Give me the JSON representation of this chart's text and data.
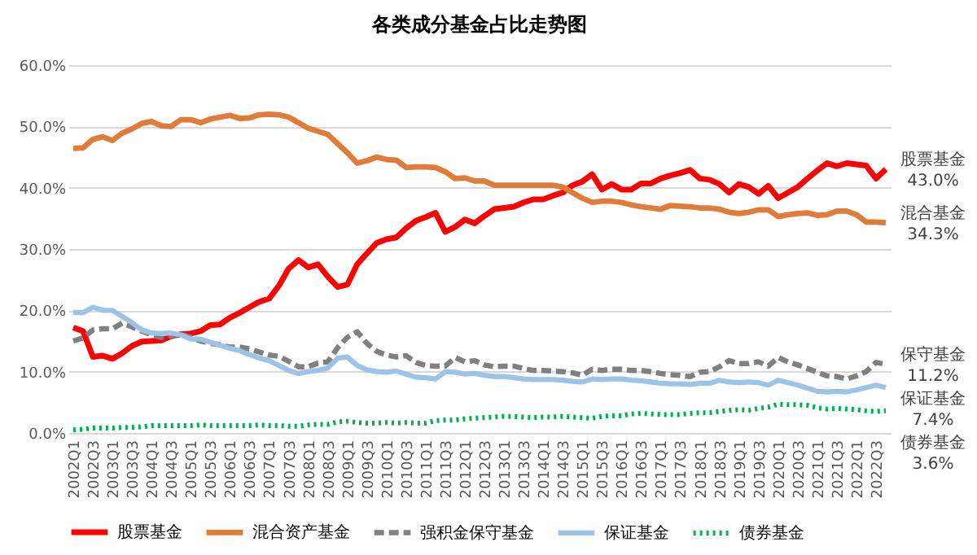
{
  "chart_data": {
    "type": "line",
    "title": "各类成分基金占比走势图",
    "categories": [
      "2002Q1",
      null,
      "2002Q3",
      null,
      "2003Q1",
      null,
      "2003Q3",
      null,
      "2004Q1",
      null,
      "2004Q3",
      null,
      "2005Q1",
      null,
      "2005Q3",
      null,
      "2006Q1",
      null,
      "2006Q3",
      null,
      "2007Q1",
      null,
      "2007Q3",
      null,
      "2008Q1",
      null,
      "2008Q3",
      null,
      "2009Q1",
      null,
      "2009Q3",
      null,
      "2010Q1",
      null,
      "2010Q3",
      null,
      "2011Q1",
      null,
      "2011Q3",
      null,
      "2012Q1",
      null,
      "2012Q3",
      null,
      "2013Q1",
      null,
      "2013Q3",
      null,
      "2014Q1",
      null,
      "2014Q3",
      null,
      "2015Q1",
      null,
      "2015Q3",
      null,
      "2016Q1",
      null,
      "2016Q3",
      null,
      "2017Q1",
      null,
      "2017Q3",
      null,
      "2018Q1",
      null,
      "2018Q3",
      null,
      "2019Q1",
      null,
      "2019Q3",
      null,
      "2020Q1",
      null,
      "2020Q3",
      null,
      "2021Q1",
      null,
      "2021Q3",
      null,
      "2022Q1",
      null,
      "2022Q3",
      null
    ],
    "series": [
      {
        "name": "股票基金",
        "color": "#ff0000",
        "line_style": "solid",
        "values": [
          17.2,
          16.6,
          12.4,
          12.6,
          12.1,
          13.0,
          14.2,
          14.9,
          15.0,
          15.1,
          15.8,
          16.1,
          16.2,
          16.6,
          17.6,
          17.7,
          18.8,
          19.6,
          20.5,
          21.4,
          21.9,
          24.0,
          26.8,
          28.2,
          27.0,
          27.5,
          25.5,
          23.8,
          24.2,
          27.5,
          29.3,
          31.0,
          31.6,
          31.9,
          33.4,
          34.6,
          35.2,
          35.9,
          32.8,
          33.6,
          34.8,
          34.2,
          35.4,
          36.5,
          36.7,
          36.9,
          37.6,
          38.1,
          38.1,
          38.7,
          39.2,
          40.4,
          41.0,
          42.2,
          39.7,
          40.6,
          39.7,
          39.7,
          40.7,
          40.7,
          41.5,
          42.0,
          42.4,
          42.9,
          41.5,
          41.3,
          40.6,
          39.2,
          40.6,
          40.1,
          39.0,
          40.3,
          38.3,
          39.2,
          40.1,
          41.5,
          42.8,
          44.0,
          43.5,
          44.0,
          43.8,
          43.6,
          41.5,
          43.0
        ]
      },
      {
        "name": "混合资产基金",
        "color": "#e07b39",
        "line_style": "solid",
        "values": [
          46.4,
          46.5,
          47.9,
          48.3,
          47.7,
          48.9,
          49.6,
          50.5,
          50.8,
          50.1,
          50.0,
          51.1,
          51.1,
          50.6,
          51.2,
          51.5,
          51.8,
          51.3,
          51.4,
          51.9,
          52.0,
          51.9,
          51.5,
          50.6,
          49.7,
          49.2,
          48.7,
          47.2,
          45.7,
          44.0,
          44.4,
          45.0,
          44.6,
          44.5,
          43.3,
          43.4,
          43.4,
          43.3,
          42.6,
          41.5,
          41.6,
          41.1,
          41.1,
          40.4,
          40.4,
          40.4,
          40.4,
          40.4,
          40.4,
          40.4,
          40.1,
          39.2,
          38.3,
          37.6,
          37.8,
          37.8,
          37.6,
          37.2,
          36.9,
          36.7,
          36.5,
          37.1,
          37.0,
          36.9,
          36.7,
          36.7,
          36.5,
          36.0,
          35.8,
          36.0,
          36.4,
          36.4,
          35.3,
          35.6,
          35.8,
          35.9,
          35.5,
          35.6,
          36.2,
          36.2,
          35.6,
          34.4,
          34.4,
          34.3
        ]
      },
      {
        "name": "强积金保守基金",
        "color": "#808080",
        "line_style": "dashed",
        "values": [
          15.0,
          15.5,
          16.8,
          17.0,
          17.0,
          17.9,
          17.3,
          16.6,
          16.0,
          15.6,
          15.9,
          16.1,
          15.6,
          15.0,
          14.6,
          14.4,
          14.0,
          14.0,
          13.7,
          13.2,
          12.7,
          12.5,
          11.7,
          10.8,
          10.8,
          11.4,
          11.6,
          13.9,
          15.6,
          16.5,
          14.6,
          13.3,
          12.7,
          12.4,
          12.6,
          11.5,
          11.0,
          10.9,
          10.9,
          12.3,
          11.6,
          11.8,
          11.1,
          10.8,
          10.9,
          10.9,
          10.5,
          10.2,
          10.2,
          10.1,
          10.0,
          9.8,
          9.4,
          10.4,
          10.2,
          10.4,
          10.4,
          10.2,
          10.2,
          10.0,
          9.7,
          9.5,
          9.4,
          9.2,
          9.9,
          10.0,
          10.8,
          11.8,
          11.3,
          11.3,
          11.6,
          10.9,
          12.3,
          11.6,
          11.1,
          10.5,
          9.9,
          9.3,
          9.2,
          8.8,
          9.3,
          10.0,
          11.5,
          11.2
        ]
      },
      {
        "name": "保证基金",
        "color": "#9dc3e6",
        "line_style": "solid",
        "values": [
          19.7,
          19.6,
          20.5,
          20.0,
          20.0,
          19.0,
          18.0,
          16.8,
          16.3,
          16.2,
          16.3,
          16.0,
          15.3,
          15.3,
          14.8,
          14.3,
          13.8,
          13.4,
          12.8,
          12.2,
          11.8,
          11.0,
          10.2,
          9.7,
          10.0,
          10.2,
          10.6,
          12.2,
          12.4,
          11.0,
          10.3,
          10.0,
          9.9,
          10.1,
          9.6,
          9.1,
          9.0,
          8.8,
          10.0,
          9.9,
          9.6,
          9.7,
          9.4,
          9.2,
          9.2,
          9.0,
          8.8,
          8.7,
          8.7,
          8.7,
          8.6,
          8.4,
          8.3,
          8.8,
          8.7,
          8.8,
          8.8,
          8.6,
          8.5,
          8.3,
          8.1,
          8.0,
          8.0,
          7.9,
          8.1,
          8.1,
          8.6,
          8.3,
          8.2,
          8.3,
          8.2,
          7.8,
          8.6,
          8.2,
          7.8,
          7.3,
          6.8,
          6.7,
          6.8,
          6.7,
          7.0,
          7.4,
          7.8,
          7.4
        ]
      },
      {
        "name": "债券基金",
        "color": "#00b050",
        "line_style": "dotted",
        "values": [
          0.5,
          0.6,
          0.8,
          0.8,
          0.8,
          0.9,
          0.9,
          1.0,
          1.2,
          1.2,
          1.2,
          1.2,
          1.2,
          1.3,
          1.2,
          1.2,
          1.2,
          1.2,
          1.2,
          1.3,
          1.2,
          1.2,
          1.1,
          1.1,
          1.3,
          1.4,
          1.4,
          1.8,
          1.9,
          1.7,
          1.6,
          1.6,
          1.7,
          1.6,
          1.7,
          1.6,
          1.6,
          2.0,
          2.1,
          2.1,
          2.3,
          2.4,
          2.5,
          2.6,
          2.7,
          2.7,
          2.6,
          2.5,
          2.6,
          2.6,
          2.7,
          2.6,
          2.5,
          2.4,
          2.7,
          2.8,
          2.8,
          3.1,
          3.2,
          3.1,
          3.0,
          3.0,
          3.0,
          3.2,
          3.3,
          3.3,
          3.5,
          3.7,
          3.8,
          3.7,
          4.0,
          4.2,
          4.7,
          4.6,
          4.6,
          4.5,
          4.1,
          3.9,
          4.0,
          3.9,
          3.8,
          3.6,
          3.5,
          3.6
        ]
      }
    ],
    "ylim": [
      0,
      60
    ],
    "yticks": [
      {
        "value": 0,
        "label": "0.0%"
      },
      {
        "value": 10,
        "label": "10.0%"
      },
      {
        "value": 20,
        "label": "20.0%"
      },
      {
        "value": 30,
        "label": "30.0%"
      },
      {
        "value": 40,
        "label": "40.0%"
      },
      {
        "value": 50,
        "label": "50.0%"
      },
      {
        "value": 60,
        "label": "60.0%"
      }
    ],
    "grid": "y",
    "legend": "bottom",
    "marker": "none",
    "annotations": [
      "股票基金",
      "43.0%",
      "混合基金",
      "34.3%",
      "保守基金",
      "11.2%",
      "保证基金",
      "7.4%",
      "债券基金",
      "3.6%"
    ]
  }
}
